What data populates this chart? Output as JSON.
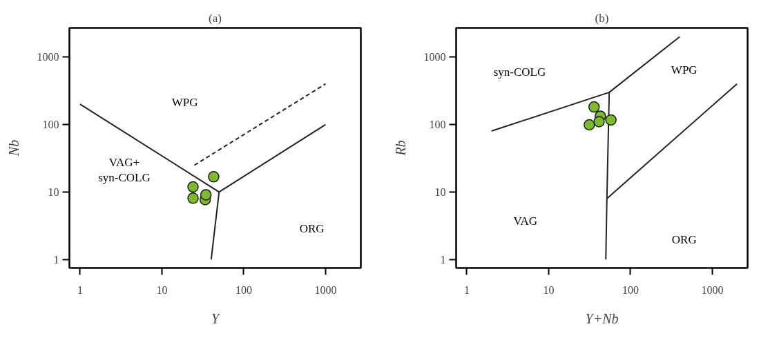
{
  "chart_data": [
    {
      "type": "scatter",
      "title": "(a)",
      "xlabel": "Y",
      "ylabel": "Nb",
      "log": "xy",
      "grid": false,
      "xlim": [
        0.74,
        2700
      ],
      "ylim": [
        0.75,
        2700
      ],
      "xticks": [
        1,
        10,
        100,
        1000
      ],
      "yticks": [
        1,
        10,
        100,
        1000
      ],
      "series": [
        {
          "type": "line",
          "color": "#222222",
          "line_style": "solid",
          "x": [
            1,
            50,
            1000
          ],
          "values": [
            200,
            10,
            100
          ]
        },
        {
          "type": "line",
          "color": "#222222",
          "line_style": "solid",
          "x": [
            50,
            40
          ],
          "values": [
            10,
            1
          ]
        },
        {
          "type": "line",
          "color": "#222222",
          "line_style": "dashed",
          "x": [
            25,
            1000
          ],
          "values": [
            25,
            400
          ]
        },
        {
          "marker": "circle",
          "color": "#7cbb2a",
          "x": [
            24,
            24,
            33.8,
            34.5,
            42.9
          ],
          "values": [
            11.9,
            8.1,
            7.7,
            9.1,
            16.8
          ]
        }
      ],
      "annotations": [
        "WPG",
        "VAG+\nsyn-COLG",
        "ORG"
      ]
    },
    {
      "type": "scatter",
      "title": "(b)",
      "xlabel": "Y+Nb",
      "ylabel": "Rb",
      "log": "xy",
      "grid": false,
      "xlim": [
        0.74,
        2700
      ],
      "ylim": [
        0.75,
        2700
      ],
      "xticks": [
        1,
        10,
        100,
        1000
      ],
      "yticks": [
        1,
        10,
        100,
        1000
      ],
      "series": [
        {
          "type": "line",
          "color": "#222222",
          "line_style": "solid",
          "x": [
            2,
            55,
            400
          ],
          "values": [
            80,
            300,
            2000
          ]
        },
        {
          "type": "line",
          "color": "#222222",
          "line_style": "solid",
          "x": [
            55,
            51.5,
            50
          ],
          "values": [
            300,
            8,
            1
          ]
        },
        {
          "type": "line",
          "color": "#222222",
          "line_style": "solid",
          "x": [
            51.5,
            2000
          ],
          "values": [
            8,
            400
          ]
        },
        {
          "marker": "circle",
          "color": "#7cbb2a",
          "x": [
            35.9,
            42.8,
            41.3,
            31.4,
            57.7
          ],
          "values": [
            182,
            133,
            110,
            99,
            117
          ]
        }
      ],
      "annotations": [
        "syn-COLG",
        "WPG",
        "VAG",
        "ORG"
      ]
    }
  ]
}
